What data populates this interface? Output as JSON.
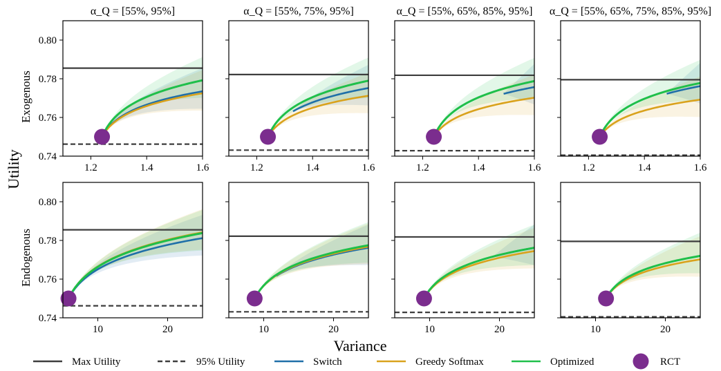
{
  "figure": {
    "ylabel": "Utility",
    "xlabel": "Variance",
    "row_labels": [
      "Exogenous",
      "Endogenous"
    ],
    "column_titles": [
      "α_Q = [55%, 95%]",
      "α_Q = [55%, 75%, 95%]",
      "α_Q = [55%, 65%, 85%, 95%]",
      "α_Q = [55%, 65%, 75%, 85%, 95%]"
    ],
    "legend": [
      {
        "label": "Max Utility",
        "style": "solid",
        "color": "#3d3d3d"
      },
      {
        "label": "95% Utility",
        "style": "dashed",
        "color": "#3d3d3d"
      },
      {
        "label": "Switch",
        "style": "solid",
        "color": "#1f6fa8"
      },
      {
        "label": "Greedy Softmax",
        "style": "solid",
        "color": "#d9a21c"
      },
      {
        "label": "Optimized",
        "style": "solid",
        "color": "#1fbf4a"
      },
      {
        "label": "RCT",
        "style": "marker",
        "color": "#7b2d8e"
      }
    ]
  },
  "chart_data": [
    {
      "type": "line",
      "row": "Exogenous",
      "title": "α_Q = [55%, 95%]",
      "xlim": [
        1.1,
        1.6
      ],
      "ylim": [
        0.74,
        0.81
      ],
      "xticks": [
        "1.2",
        "1.4",
        "1.6"
      ],
      "yticks": [
        "0.74",
        "0.76",
        "0.78",
        "0.80"
      ],
      "max_utility": 0.7855,
      "utility_95": 0.7462,
      "rct": [
        1.24,
        0.75
      ],
      "series": [
        {
          "name": "Switch",
          "x0": 1.24,
          "x_end": 1.6,
          "y_end": 0.7735
        },
        {
          "name": "Greedy Softmax",
          "x0": 1.24,
          "x_end": 1.6,
          "y_end": 0.7725
        },
        {
          "name": "Optimized",
          "x0": 1.24,
          "x_end": 1.6,
          "y_end": 0.7792
        }
      ]
    },
    {
      "type": "line",
      "row": "Exogenous",
      "title": "α_Q = [55%, 75%, 95%]",
      "xlim": [
        1.1,
        1.6
      ],
      "ylim": [
        0.74,
        0.81
      ],
      "xticks": [
        "1.2",
        "1.4",
        "1.6"
      ],
      "yticks": [],
      "max_utility": 0.7822,
      "utility_95": 0.7431,
      "rct": [
        1.24,
        0.75
      ],
      "series": [
        {
          "name": "Switch",
          "x0": 1.33,
          "x_end": 1.6,
          "y_end": 0.7752
        },
        {
          "name": "Greedy Softmax",
          "x0": 1.24,
          "x_end": 1.6,
          "y_end": 0.7712
        },
        {
          "name": "Optimized",
          "x0": 1.24,
          "x_end": 1.6,
          "y_end": 0.779
        }
      ]
    },
    {
      "type": "line",
      "row": "Exogenous",
      "title": "α_Q = [55%, 65%, 85%, 95%]",
      "xlim": [
        1.1,
        1.6
      ],
      "ylim": [
        0.74,
        0.81
      ],
      "xticks": [
        "1.2",
        "1.4",
        "1.6"
      ],
      "yticks": [],
      "max_utility": 0.7818,
      "utility_95": 0.7428,
      "rct": [
        1.24,
        0.75
      ],
      "series": [
        {
          "name": "Switch",
          "x0": 1.49,
          "x_end": 1.6,
          "y_end": 0.7757
        },
        {
          "name": "Greedy Softmax",
          "x0": 1.24,
          "x_end": 1.6,
          "y_end": 0.7702
        },
        {
          "name": "Optimized",
          "x0": 1.24,
          "x_end": 1.6,
          "y_end": 0.7788
        }
      ]
    },
    {
      "type": "line",
      "row": "Exogenous",
      "title": "α_Q = [55%, 65%, 75%, 85%, 95%]",
      "xlim": [
        1.1,
        1.6
      ],
      "ylim": [
        0.74,
        0.81
      ],
      "xticks": [
        "1.2",
        "1.4",
        "1.6"
      ],
      "yticks": [],
      "max_utility": 0.7795,
      "utility_95": 0.7405,
      "rct": [
        1.24,
        0.75
      ],
      "series": [
        {
          "name": "Switch",
          "x0": 1.48,
          "x_end": 1.6,
          "y_end": 0.7762
        },
        {
          "name": "Greedy Softmax",
          "x0": 1.24,
          "x_end": 1.6,
          "y_end": 0.7692
        },
        {
          "name": "Optimized",
          "x0": 1.24,
          "x_end": 1.6,
          "y_end": 0.7778
        }
      ]
    },
    {
      "type": "line",
      "row": "Endogenous",
      "title": "",
      "xlim": [
        5,
        25
      ],
      "ylim": [
        0.74,
        0.81
      ],
      "xticks": [
        "10",
        "20"
      ],
      "yticks": [
        "0.74",
        "0.76",
        "0.78",
        "0.80"
      ],
      "max_utility": 0.7855,
      "utility_95": 0.7462,
      "rct": [
        5.8,
        0.75
      ],
      "series": [
        {
          "name": "Switch",
          "x0": 5.8,
          "x_end": 25,
          "y_end": 0.7812
        },
        {
          "name": "Greedy Softmax",
          "x0": 5.8,
          "x_end": 25,
          "y_end": 0.7842
        },
        {
          "name": "Optimized",
          "x0": 5.8,
          "x_end": 25,
          "y_end": 0.7838
        }
      ]
    },
    {
      "type": "line",
      "row": "Endogenous",
      "title": "",
      "xlim": [
        5,
        25
      ],
      "ylim": [
        0.74,
        0.81
      ],
      "xticks": [
        "10",
        "20"
      ],
      "yticks": [],
      "max_utility": 0.7822,
      "utility_95": 0.7431,
      "rct": [
        8.7,
        0.75
      ],
      "series": [
        {
          "name": "Switch",
          "x0": 11.8,
          "x_end": 25,
          "y_end": 0.7762
        },
        {
          "name": "Greedy Softmax",
          "x0": 8.7,
          "x_end": 25,
          "y_end": 0.7768
        },
        {
          "name": "Optimized",
          "x0": 8.7,
          "x_end": 25,
          "y_end": 0.7775
        }
      ]
    },
    {
      "type": "line",
      "row": "Endogenous",
      "title": "",
      "xlim": [
        5,
        25
      ],
      "ylim": [
        0.74,
        0.81
      ],
      "xticks": [
        "10",
        "20"
      ],
      "yticks": [],
      "max_utility": 0.7818,
      "utility_95": 0.7428,
      "rct": [
        9.2,
        0.75
      ],
      "series": [
        {
          "name": "Switch",
          "x0": 19.0,
          "x_end": 25,
          "y_end": 0.7762
        },
        {
          "name": "Greedy Softmax",
          "x0": 9.2,
          "x_end": 25,
          "y_end": 0.7745
        },
        {
          "name": "Optimized",
          "x0": 9.2,
          "x_end": 25,
          "y_end": 0.7762
        }
      ]
    },
    {
      "type": "line",
      "row": "Endogenous",
      "title": "",
      "xlim": [
        5,
        25
      ],
      "ylim": [
        0.74,
        0.81
      ],
      "xticks": [
        "10",
        "20"
      ],
      "yticks": [],
      "max_utility": 0.7795,
      "utility_95": 0.7405,
      "rct": [
        11.5,
        0.75
      ],
      "series": [
        {
          "name": "Greedy Softmax",
          "x0": 11.5,
          "x_end": 25,
          "y_end": 0.7702
        },
        {
          "name": "Optimized",
          "x0": 11.5,
          "x_end": 25,
          "y_end": 0.772
        }
      ]
    }
  ]
}
